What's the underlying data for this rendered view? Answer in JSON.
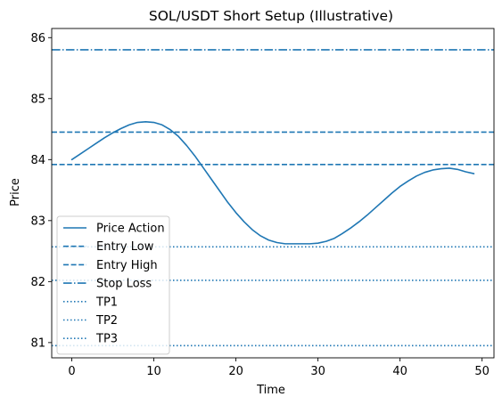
{
  "chart_data": {
    "type": "line",
    "title": "SOL/USDT Short Setup (Illustrative)",
    "xlabel": "Time",
    "ylabel": "Price",
    "xlim": [
      -2.45,
      51.45
    ],
    "ylim": [
      80.75,
      86.15
    ],
    "xticks": [
      0,
      10,
      20,
      30,
      40,
      50
    ],
    "yticks": [
      81,
      82,
      83,
      84,
      85,
      86
    ],
    "grid": false,
    "legend_position": "lower-left",
    "color": "#1f77b4",
    "series": [
      {
        "name": "Price Action",
        "style": "solid",
        "x": [
          0,
          1,
          2,
          3,
          4,
          5,
          6,
          7,
          8,
          9,
          10,
          11,
          12,
          13,
          14,
          15,
          16,
          17,
          18,
          19,
          20,
          21,
          22,
          23,
          24,
          25,
          26,
          27,
          28,
          29,
          30,
          31,
          32,
          33,
          34,
          35,
          36,
          37,
          38,
          39,
          40,
          41,
          42,
          43,
          44,
          45,
          46,
          47,
          48,
          49
        ],
        "y": [
          84.0,
          84.09,
          84.18,
          84.27,
          84.36,
          84.44,
          84.51,
          84.57,
          84.61,
          84.62,
          84.61,
          84.57,
          84.49,
          84.38,
          84.23,
          84.06,
          83.87,
          83.68,
          83.49,
          83.3,
          83.13,
          82.98,
          82.85,
          82.75,
          82.68,
          82.64,
          82.62,
          82.62,
          82.62,
          82.62,
          82.63,
          82.66,
          82.71,
          82.79,
          82.88,
          82.98,
          83.09,
          83.21,
          83.33,
          83.45,
          83.56,
          83.65,
          83.73,
          83.79,
          83.83,
          83.85,
          83.86,
          83.84,
          83.8,
          83.77
        ]
      },
      {
        "name": "Entry Low",
        "style": "dashed",
        "value": 83.92
      },
      {
        "name": "Entry High",
        "style": "dashed",
        "value": 84.45
      },
      {
        "name": "Stop Loss",
        "style": "dashdot",
        "value": 85.8
      },
      {
        "name": "TP1",
        "style": "dotted",
        "value": 82.57
      },
      {
        "name": "TP2",
        "style": "dotted",
        "value": 82.02
      },
      {
        "name": "TP3",
        "style": "dotted",
        "value": 80.95
      }
    ]
  }
}
